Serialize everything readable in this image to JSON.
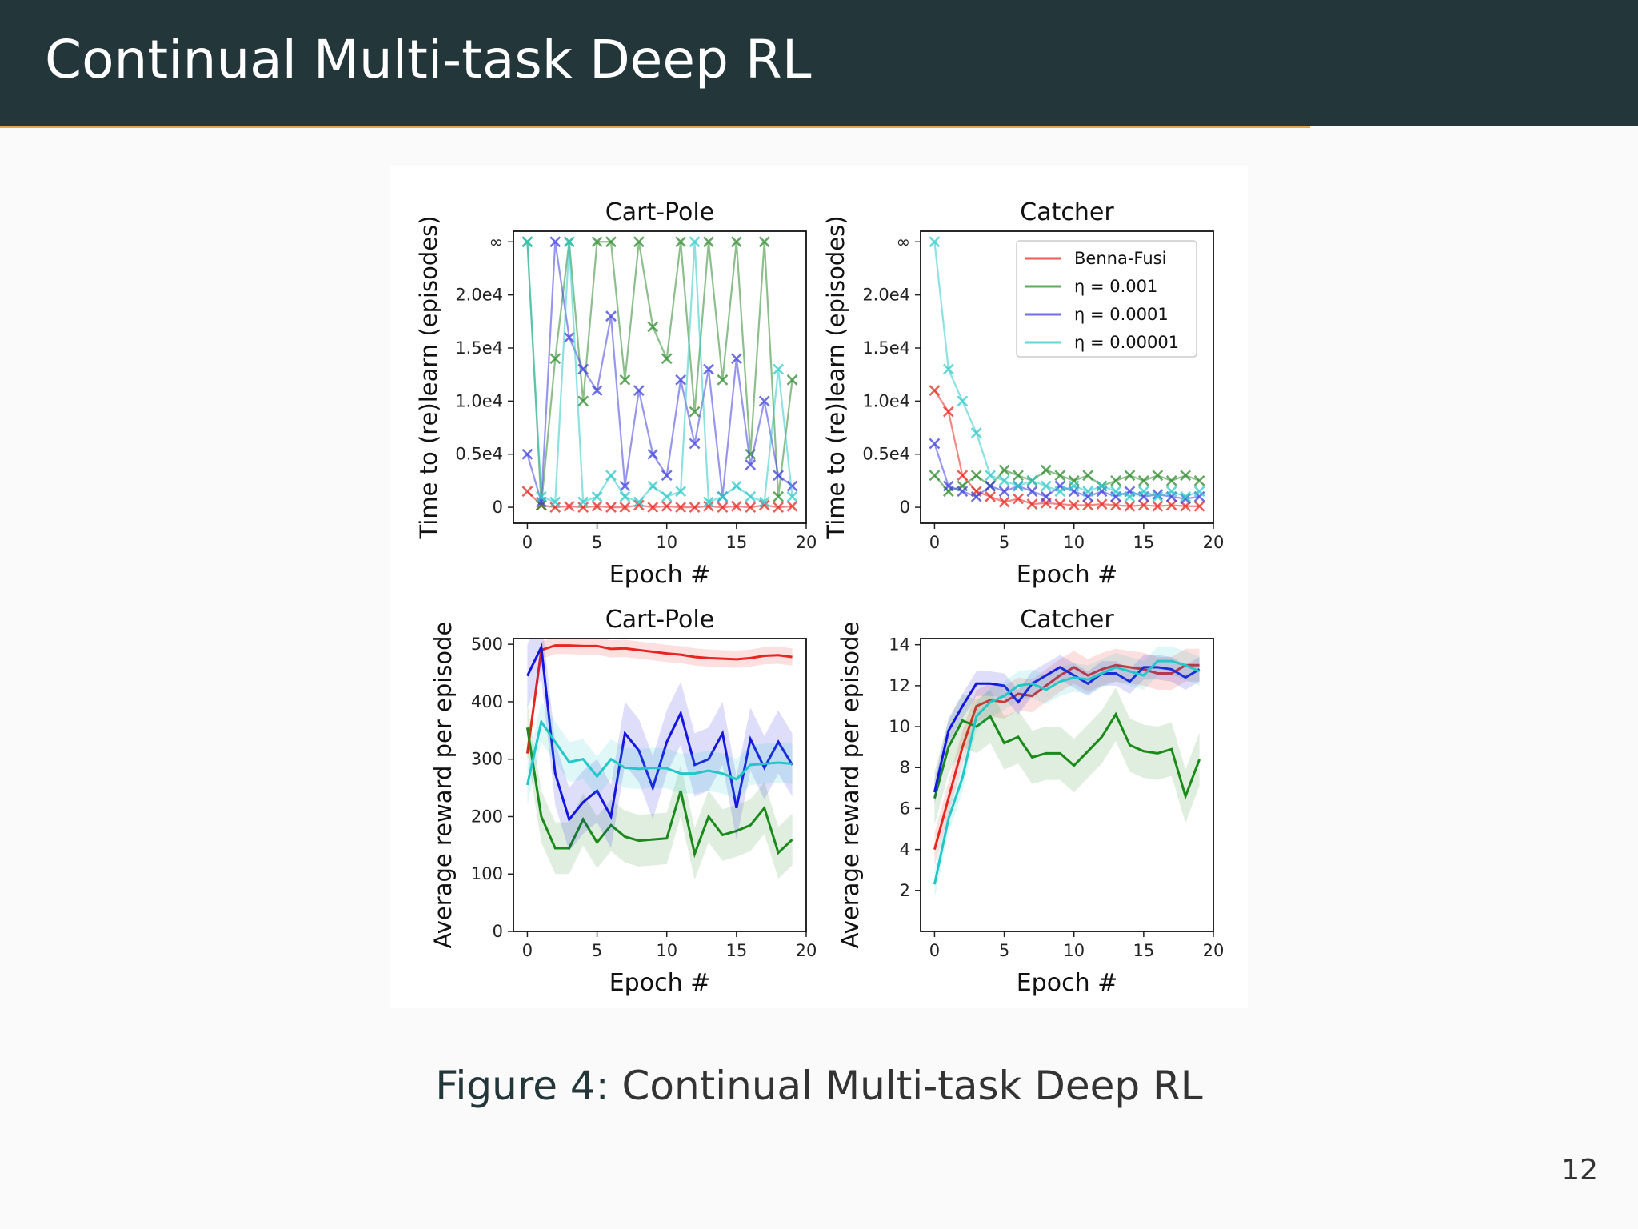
{
  "slide": {
    "title": "Continual Multi-task Deep RL",
    "caption_label": "Figure 4:",
    "caption_text": "Continual Multi-task Deep RL",
    "page_number": "12",
    "colors": {
      "header_bg": "#23373b",
      "accent": "#e3a849"
    }
  },
  "chart_data": [
    {
      "type": "scatter",
      "title": "Cart-Pole",
      "xlabel": "Epoch #",
      "ylabel": "Time to (re)learn (episodes)",
      "xlim": [
        -1,
        20
      ],
      "ylim": [
        -1500,
        26000
      ],
      "xticks": [
        0,
        5,
        10,
        15,
        20
      ],
      "yticks": [
        {
          "v": 0,
          "label": "0"
        },
        {
          "v": 5000,
          "label": "0.5e4"
        },
        {
          "v": 10000,
          "label": "1.0e4"
        },
        {
          "v": 15000,
          "label": "1.5e4"
        },
        {
          "v": 20000,
          "label": "2.0e4"
        },
        {
          "v": 25000,
          "label": "∞"
        }
      ],
      "series": [
        {
          "name": "Benna-Fusi",
          "color": "#e8261f",
          "values": [
            1500,
            200,
            0,
            100,
            0,
            100,
            0,
            0,
            200,
            0,
            100,
            0,
            0,
            100,
            0,
            100,
            0,
            200,
            0,
            100
          ]
        },
        {
          "name": "η = 0.001",
          "color": "#2e8b2e",
          "values": [
            25000,
            200,
            14000,
            25000,
            10000,
            25000,
            25000,
            12000,
            25000,
            17000,
            14000,
            25000,
            9000,
            25000,
            12000,
            25000,
            5000,
            25000,
            1000,
            12000
          ]
        },
        {
          "name": "η = 0.0001",
          "color": "#3f3fe0",
          "values": [
            5000,
            500,
            25000,
            16000,
            13000,
            11000,
            18000,
            2000,
            11000,
            5000,
            3000,
            12000,
            6000,
            13000,
            1000,
            14000,
            4000,
            10000,
            3000,
            2000
          ]
        },
        {
          "name": "η = 0.00001",
          "color": "#2ec9c9",
          "values": [
            25000,
            1000,
            500,
            25000,
            500,
            1000,
            3000,
            1000,
            500,
            2000,
            1000,
            1500,
            25000,
            500,
            1000,
            2000,
            1000,
            500,
            13000,
            1000
          ]
        }
      ]
    },
    {
      "type": "scatter",
      "title": "Catcher",
      "xlabel": "Epoch #",
      "ylabel": "Time to (re)learn (episodes)",
      "xlim": [
        -1,
        20
      ],
      "ylim": [
        -1500,
        26000
      ],
      "xticks": [
        0,
        5,
        10,
        15,
        20
      ],
      "yticks": [
        {
          "v": 0,
          "label": "0"
        },
        {
          "v": 5000,
          "label": "0.5e4"
        },
        {
          "v": 10000,
          "label": "1.0e4"
        },
        {
          "v": 15000,
          "label": "1.5e4"
        },
        {
          "v": 20000,
          "label": "2.0e4"
        },
        {
          "v": 25000,
          "label": "∞"
        }
      ],
      "legend": {
        "position": "top-right",
        "entries": [
          "Benna-Fusi",
          "η = 0.001",
          "η = 0.0001",
          "η = 0.00001"
        ]
      },
      "series": [
        {
          "name": "Benna-Fusi",
          "color": "#e8261f",
          "values": [
            11000,
            9000,
            3000,
            1500,
            1000,
            500,
            800,
            300,
            400,
            300,
            200,
            200,
            300,
            200,
            100,
            200,
            100,
            200,
            100,
            100
          ]
        },
        {
          "name": "η = 0.001",
          "color": "#2e8b2e",
          "values": [
            3000,
            1500,
            2000,
            3000,
            2000,
            3500,
            3000,
            2500,
            3500,
            3000,
            2500,
            3000,
            2000,
            2500,
            3000,
            2500,
            3000,
            2500,
            3000,
            2500
          ]
        },
        {
          "name": "η = 0.0001",
          "color": "#3f3fe0",
          "values": [
            6000,
            2000,
            1500,
            1000,
            2000,
            1500,
            2000,
            1500,
            1000,
            2000,
            1500,
            1000,
            1500,
            1000,
            1500,
            1000,
            1200,
            1000,
            800,
            1000
          ]
        },
        {
          "name": "η = 0.00001",
          "color": "#2ec9c9",
          "values": [
            25000,
            13000,
            10000,
            7000,
            3000,
            2500,
            2000,
            2500,
            2000,
            1500,
            2000,
            1500,
            2000,
            1500,
            1000,
            1500,
            1000,
            1500,
            1000,
            1500
          ]
        }
      ]
    },
    {
      "type": "line",
      "title": "Cart-Pole",
      "xlabel": "Epoch #",
      "ylabel": "Average reward per episode",
      "xlim": [
        -1,
        20
      ],
      "ylim": [
        0,
        510
      ],
      "xticks": [
        0,
        5,
        10,
        15,
        20
      ],
      "yticks": [
        {
          "v": 0,
          "label": "0"
        },
        {
          "v": 100,
          "label": "100"
        },
        {
          "v": 200,
          "label": "200"
        },
        {
          "v": 300,
          "label": "300"
        },
        {
          "v": 400,
          "label": "400"
        },
        {
          "v": 500,
          "label": "500"
        }
      ],
      "series": [
        {
          "name": "Benna-Fusi",
          "color": "#e8261f",
          "band": 15,
          "values": [
            310,
            490,
            498,
            498,
            497,
            497,
            492,
            493,
            490,
            487,
            484,
            482,
            478,
            476,
            475,
            474,
            476,
            480,
            481,
            478
          ]
        },
        {
          "name": "η = 0.001",
          "color": "#1a8a1a",
          "band": 45,
          "values": [
            355,
            200,
            145,
            145,
            195,
            155,
            185,
            165,
            158,
            160,
            162,
            245,
            135,
            200,
            168,
            175,
            185,
            215,
            137,
            160
          ]
        },
        {
          "name": "η = 0.0001",
          "color": "#1515e0",
          "band": 55,
          "values": [
            445,
            495,
            275,
            195,
            225,
            245,
            200,
            345,
            315,
            250,
            330,
            380,
            290,
            300,
            345,
            215,
            335,
            285,
            330,
            290
          ]
        },
        {
          "name": "η = 0.00001",
          "color": "#22c7c7",
          "band": 35,
          "values": [
            255,
            365,
            330,
            295,
            300,
            270,
            300,
            285,
            283,
            285,
            284,
            275,
            275,
            280,
            275,
            265,
            290,
            292,
            294,
            292
          ]
        }
      ]
    },
    {
      "type": "line",
      "title": "Catcher",
      "xlabel": "Epoch #",
      "ylabel": "Average reward per episode",
      "xlim": [
        -1,
        20
      ],
      "ylim": [
        0,
        14.3
      ],
      "xticks": [
        0,
        5,
        10,
        15,
        20
      ],
      "yticks": [
        {
          "v": 2,
          "label": "2"
        },
        {
          "v": 4,
          "label": "4"
        },
        {
          "v": 6,
          "label": "6"
        },
        {
          "v": 8,
          "label": "8"
        },
        {
          "v": 10,
          "label": "10"
        },
        {
          "v": 12,
          "label": "12"
        },
        {
          "v": 14,
          "label": "14"
        }
      ],
      "series": [
        {
          "name": "Benna-Fusi",
          "color": "#e8261f",
          "band": 0.8,
          "values": [
            4.0,
            6.5,
            9.0,
            11.0,
            11.3,
            11.2,
            11.6,
            11.5,
            12.0,
            12.5,
            12.9,
            12.5,
            12.8,
            13.0,
            12.9,
            12.8,
            12.6,
            12.6,
            13.0,
            13.0
          ]
        },
        {
          "name": "η = 0.001",
          "color": "#1a8a1a",
          "band": 1.3,
          "values": [
            6.5,
            9.0,
            10.3,
            10.0,
            10.5,
            9.2,
            9.5,
            8.5,
            8.7,
            8.7,
            8.1,
            8.8,
            9.5,
            10.6,
            9.1,
            8.8,
            8.7,
            8.9,
            6.6,
            8.4
          ]
        },
        {
          "name": "η = 0.0001",
          "color": "#1515e0",
          "band": 0.6,
          "values": [
            6.8,
            9.8,
            11.0,
            12.1,
            12.1,
            12.0,
            11.2,
            12.1,
            12.5,
            12.9,
            12.5,
            12.1,
            12.6,
            12.6,
            12.2,
            12.9,
            12.9,
            12.8,
            12.4,
            12.8
          ]
        },
        {
          "name": "η = 0.00001",
          "color": "#22c7c7",
          "band": 0.7,
          "values": [
            2.3,
            5.5,
            7.5,
            10.5,
            11.2,
            11.5,
            12.0,
            12.1,
            11.8,
            12.2,
            12.4,
            12.3,
            12.6,
            12.9,
            12.7,
            12.5,
            13.2,
            13.2,
            13.0,
            12.7
          ]
        }
      ]
    }
  ]
}
